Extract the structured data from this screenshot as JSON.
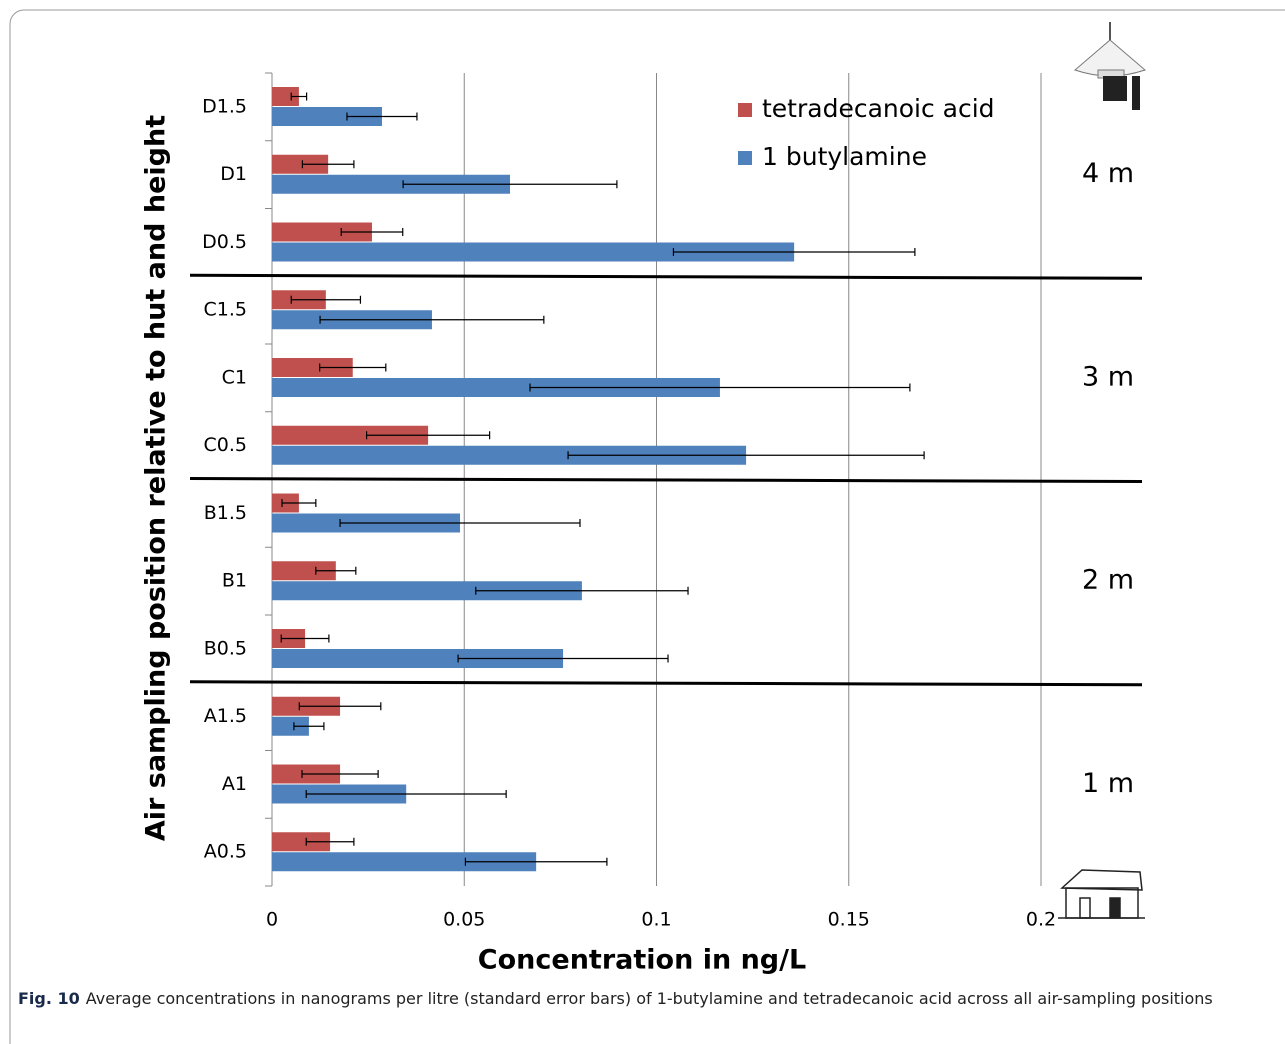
{
  "chart_data": {
    "type": "bar",
    "orientation": "horizontal",
    "categories": [
      "D1.5",
      "D1",
      "D0.5",
      "C1.5",
      "C1",
      "C0.5",
      "B1.5",
      "B1",
      "B0.5",
      "A1.5",
      "A1",
      "A0.5"
    ],
    "series": [
      {
        "name": "tetradecanoic acid",
        "color": "#c0504d",
        "values": [
          0.007,
          0.0146,
          0.026,
          0.014,
          0.021,
          0.0406,
          0.007,
          0.0166,
          0.0086,
          0.0177,
          0.0177,
          0.0151
        ],
        "errors": [
          0.002,
          0.0067,
          0.008,
          0.009,
          0.0086,
          0.016,
          0.0044,
          0.0052,
          0.0062,
          0.0106,
          0.0099,
          0.0062
        ]
      },
      {
        "name": "1 butylamine",
        "color": "#4f81bd",
        "values": [
          0.0286,
          0.0619,
          0.1358,
          0.0416,
          0.1165,
          0.1233,
          0.0489,
          0.0806,
          0.0757,
          0.0096,
          0.0349,
          0.0687
        ],
        "errors": [
          0.0091,
          0.0278,
          0.0314,
          0.0291,
          0.0494,
          0.0463,
          0.0312,
          0.0276,
          0.0273,
          0.0039,
          0.026,
          0.0184
        ]
      }
    ],
    "xlim": [
      0,
      0.2
    ],
    "xticks": [
      0,
      0.05,
      0.1,
      0.15,
      0.2
    ],
    "grid": true,
    "xlabel": "Concentration in ng/L",
    "ylabel": "Air sampling position relative to hut and height",
    "group_labels": [
      "4 m",
      "3 m",
      "2 m",
      "1 m"
    ]
  },
  "caption": {
    "label": "Fig. 10",
    "text": "Average concentrations in nanograms per litre (standard error bars) of 1-butylamine and tetradecanoic acid across all air-sampling positions"
  }
}
